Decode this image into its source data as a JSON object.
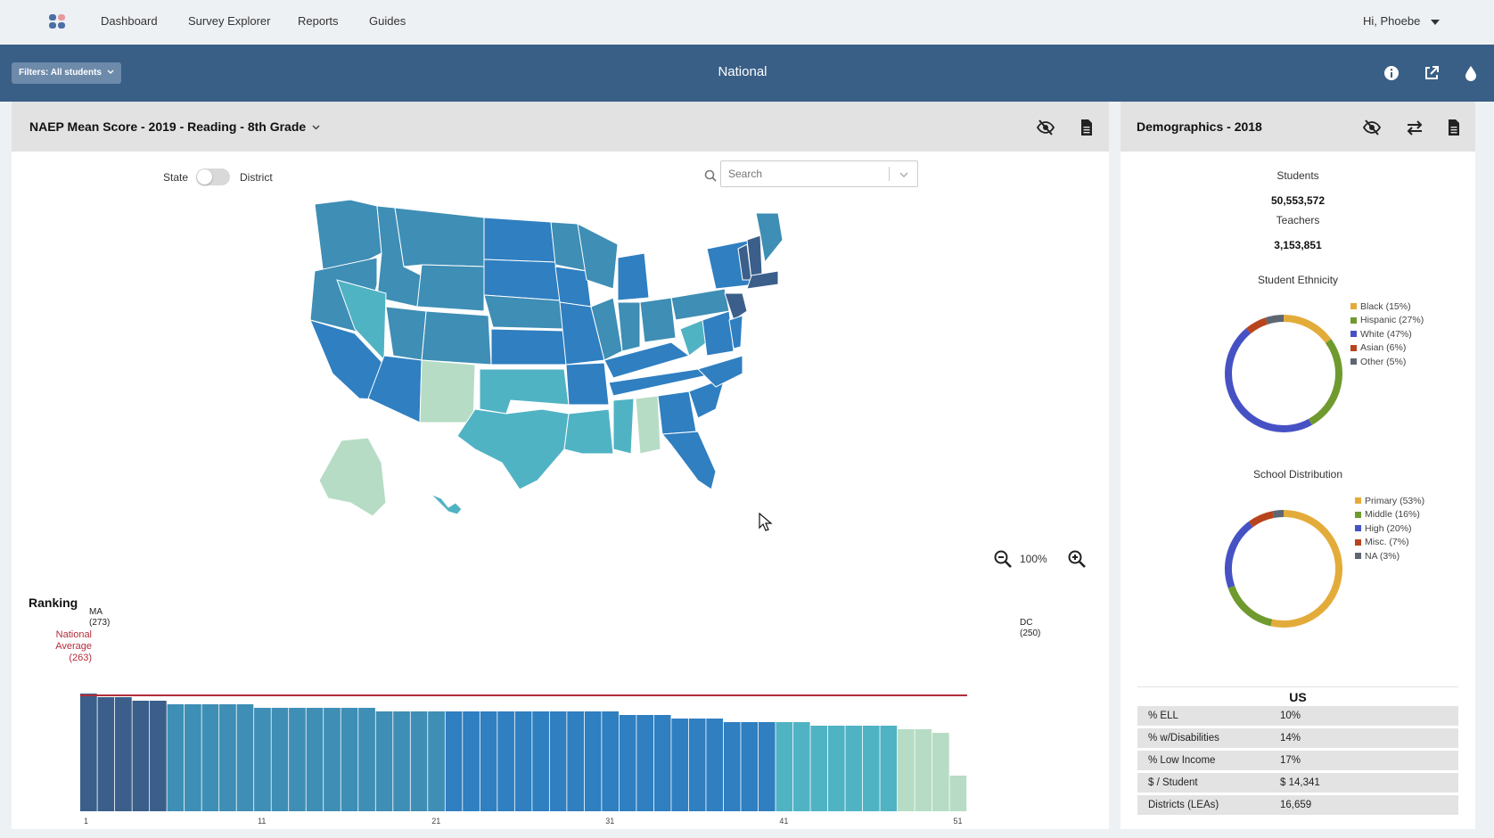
{
  "nav": {
    "links": [
      "Dashboard",
      "Survey Explorer",
      "Reports",
      "Guides"
    ],
    "user": "Hi, Phoebe"
  },
  "toolbar": {
    "filters_label": "Filters: All students",
    "title": "National",
    "icons": [
      "info-icon",
      "external-link-icon",
      "color-drop-icon"
    ]
  },
  "main_panel": {
    "title": "NAEP Mean Score - 2019 - Reading - 8th Grade",
    "icons": [
      "hide-icon",
      "document-icon"
    ],
    "toggle": {
      "left": "State",
      "right": "District",
      "selected": "State"
    },
    "search": {
      "placeholder": "Search",
      "value": ""
    },
    "zoom": {
      "level": "100%"
    }
  },
  "ranking": {
    "title": "Ranking",
    "top": {
      "name": "MA",
      "score": "(273)"
    },
    "bottom": {
      "name": "DC",
      "score": "(250)"
    },
    "national_average": {
      "line1": "National",
      "line2": "Average",
      "line3": "(263)",
      "value": 263
    },
    "tick_labels": [
      "1",
      "11",
      "21",
      "31",
      "41",
      "51"
    ]
  },
  "chart_data": {
    "type": "bar",
    "title": "Ranking",
    "categories": [
      "1",
      "2",
      "3",
      "4",
      "5",
      "6",
      "7",
      "8",
      "9",
      "10",
      "11",
      "12",
      "13",
      "14",
      "15",
      "16",
      "17",
      "18",
      "19",
      "20",
      "21",
      "22",
      "23",
      "24",
      "25",
      "26",
      "27",
      "28",
      "29",
      "30",
      "31",
      "32",
      "33",
      "34",
      "35",
      "36",
      "37",
      "38",
      "39",
      "40",
      "41",
      "42",
      "43",
      "44",
      "45",
      "46",
      "47",
      "48",
      "49",
      "50",
      "51"
    ],
    "values": [
      273,
      272,
      272,
      271,
      271,
      270,
      270,
      270,
      270,
      270,
      269,
      269,
      269,
      269,
      269,
      269,
      269,
      268,
      268,
      268,
      268,
      268,
      268,
      268,
      268,
      268,
      268,
      268,
      268,
      268,
      268,
      267,
      267,
      267,
      266,
      266,
      266,
      265,
      265,
      265,
      265,
      265,
      264,
      264,
      264,
      264,
      264,
      263,
      263,
      262,
      250
    ],
    "colors": {
      "darkest": "#3b5f8a",
      "dark": "#3e8eb5",
      "mid": "#2f7fc1",
      "light": "#50b3c4",
      "lightest": "#b7dcc5"
    },
    "reference_line": {
      "label": "National Average",
      "value": 263,
      "color": "#b22d3a"
    }
  },
  "demographics": {
    "title": "Demographics - 2018",
    "icons": [
      "hide-icon",
      "swap-icon",
      "document-icon"
    ],
    "students_label": "Students",
    "students_value": "50,553,572",
    "teachers_label": "Teachers",
    "teachers_value": "3,153,851",
    "ethnicity": {
      "title": "Student Ethnicity",
      "items": [
        {
          "label": "Black (15%)",
          "value": 15,
          "color": "#e3ac3a"
        },
        {
          "label": "Hispanic (27%)",
          "value": 27,
          "color": "#6f9a2e"
        },
        {
          "label": "White (47%)",
          "value": 47,
          "color": "#4652c4"
        },
        {
          "label": "Asian (6%)",
          "value": 6,
          "color": "#b8441e"
        },
        {
          "label": "Other (5%)",
          "value": 5,
          "color": "#5e6671"
        }
      ]
    },
    "schools": {
      "title": "School Distribution",
      "items": [
        {
          "label": "Primary (53%)",
          "value": 53,
          "color": "#e3ac3a"
        },
        {
          "label": "Middle (16%)",
          "value": 16,
          "color": "#6f9a2e"
        },
        {
          "label": "High (20%)",
          "value": 20,
          "color": "#4652c4"
        },
        {
          "label": "Misc. (7%)",
          "value": 7,
          "color": "#b8441e"
        },
        {
          "label": "NA (3%)",
          "value": 3,
          "color": "#5e6671"
        }
      ]
    },
    "table": {
      "header": "US",
      "rows": [
        {
          "k": "% ELL",
          "v": "10%"
        },
        {
          "k": "% w/Disabilities",
          "v": "14%"
        },
        {
          "k": "% Low Income",
          "v": "17%"
        },
        {
          "k": "$ / Student",
          "v": "$ 14,341"
        },
        {
          "k": "Districts (LEAs)",
          "v": "16,659"
        }
      ]
    }
  }
}
